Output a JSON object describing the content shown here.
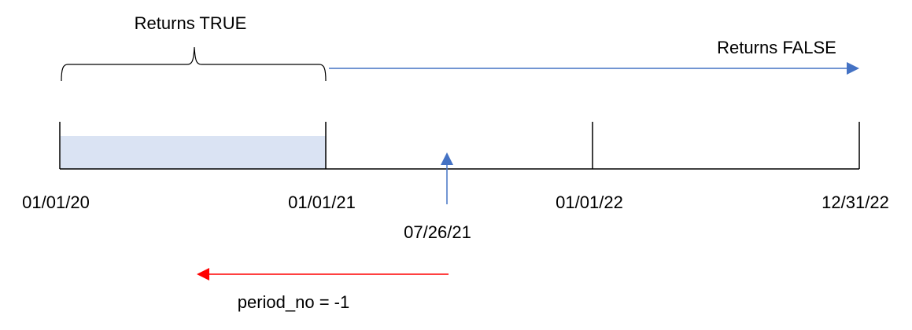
{
  "labels": {
    "returns_true": "Returns TRUE",
    "returns_false": "Returns FALSE",
    "period": "period_no = -1"
  },
  "dates": [
    "01/01/20",
    "01/01/21",
    "01/01/22",
    "12/31/22"
  ],
  "marker_date": "07/26/21",
  "colors": {
    "shade": "#dae3f3",
    "blue_arrow": "#4472c4",
    "red_arrow": "#ff0000",
    "line": "#000000"
  }
}
